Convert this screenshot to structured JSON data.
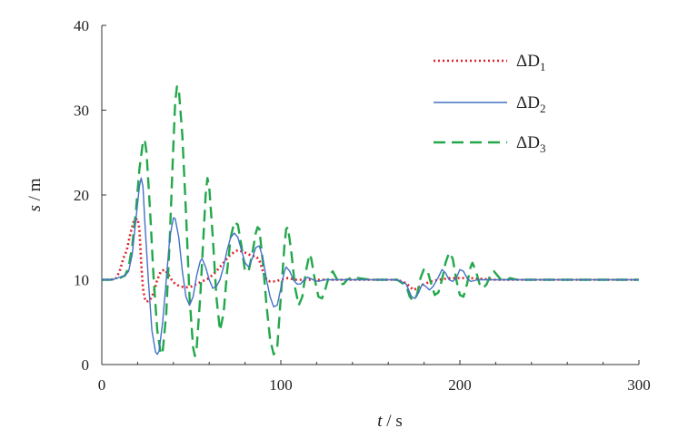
{
  "chart_data": {
    "type": "line",
    "xlabel_var": "t",
    "xlabel_unit": "s",
    "ylabel_var": "s",
    "ylabel_unit": "m",
    "xlim": [
      0,
      300
    ],
    "ylim": [
      0,
      40
    ],
    "x_ticks": [
      0,
      100,
      200,
      300
    ],
    "y_ticks": [
      0,
      10,
      20,
      30,
      40
    ],
    "grid": false,
    "legend_placement": "top-right",
    "series": [
      {
        "name_base": "ΔD",
        "name_sub": "1",
        "color": "#e0202a",
        "dash": "dotted",
        "points": [
          [
            0,
            10
          ],
          [
            5,
            10
          ],
          [
            8,
            10.2
          ],
          [
            10,
            11
          ],
          [
            12,
            12.5
          ],
          [
            14,
            13.5
          ],
          [
            16,
            15.5
          ],
          [
            18,
            17
          ],
          [
            20,
            17.2
          ],
          [
            21,
            16
          ],
          [
            22,
            12
          ],
          [
            23,
            9
          ],
          [
            24,
            7.8
          ],
          [
            25,
            7.4
          ],
          [
            27,
            7.6
          ],
          [
            29,
            8.5
          ],
          [
            31,
            10
          ],
          [
            33,
            11
          ],
          [
            35,
            11.2
          ],
          [
            37,
            10.7
          ],
          [
            39,
            10
          ],
          [
            41,
            9.5
          ],
          [
            44,
            9.2
          ],
          [
            47,
            9.1
          ],
          [
            50,
            9.2
          ],
          [
            53,
            9.5
          ],
          [
            56,
            9.8
          ],
          [
            60,
            10.2
          ],
          [
            64,
            11
          ],
          [
            68,
            12
          ],
          [
            72,
            13
          ],
          [
            76,
            13.5
          ],
          [
            80,
            13.2
          ],
          [
            84,
            12.8
          ],
          [
            86,
            12.8
          ],
          [
            88,
            12.3
          ],
          [
            90,
            11
          ],
          [
            92,
            10
          ],
          [
            94,
            9.8
          ],
          [
            97,
            9.8
          ],
          [
            100,
            10
          ],
          [
            104,
            10.2
          ],
          [
            108,
            10
          ],
          [
            112,
            10
          ],
          [
            130,
            10
          ],
          [
            165,
            10
          ],
          [
            170,
            9.6
          ],
          [
            172,
            9.2
          ],
          [
            174,
            8.8
          ],
          [
            176,
            9
          ],
          [
            180,
            9.5
          ],
          [
            184,
            9.8
          ],
          [
            188,
            10
          ],
          [
            195,
            10.2
          ],
          [
            205,
            10.2
          ],
          [
            220,
            10
          ],
          [
            300,
            10
          ]
        ]
      },
      {
        "name_base": "ΔD",
        "name_sub": "2",
        "color": "#4472c4",
        "dash": "solid",
        "points": [
          [
            0,
            10
          ],
          [
            6,
            10
          ],
          [
            10,
            10.3
          ],
          [
            13,
            10.5
          ],
          [
            15,
            11
          ],
          [
            17,
            13
          ],
          [
            19,
            17
          ],
          [
            21,
            21
          ],
          [
            22,
            22
          ],
          [
            23,
            21
          ],
          [
            24,
            17
          ],
          [
            26,
            10
          ],
          [
            28,
            4
          ],
          [
            30,
            1.5
          ],
          [
            31,
            1.2
          ],
          [
            32,
            1.6
          ],
          [
            34,
            5
          ],
          [
            36,
            10
          ],
          [
            38,
            15
          ],
          [
            40,
            17.3
          ],
          [
            41,
            17.2
          ],
          [
            43,
            15
          ],
          [
            45,
            11
          ],
          [
            47,
            8
          ],
          [
            49,
            7
          ],
          [
            51,
            8
          ],
          [
            53,
            10.5
          ],
          [
            55,
            12.2
          ],
          [
            56,
            12.5
          ],
          [
            58,
            11.5
          ],
          [
            60,
            10
          ],
          [
            62,
            9
          ],
          [
            64,
            9.2
          ],
          [
            66,
            10
          ],
          [
            68,
            11.5
          ],
          [
            70,
            13.5
          ],
          [
            72,
            15
          ],
          [
            74,
            15.5
          ],
          [
            76,
            15
          ],
          [
            78,
            13.5
          ],
          [
            80,
            12
          ],
          [
            82,
            11.5
          ],
          [
            84,
            12.5
          ],
          [
            86,
            13.8
          ],
          [
            88,
            14
          ],
          [
            90,
            12.5
          ],
          [
            92,
            10
          ],
          [
            94,
            8
          ],
          [
            96,
            6.8
          ],
          [
            98,
            7
          ],
          [
            100,
            9
          ],
          [
            102,
            11
          ],
          [
            103,
            11.5
          ],
          [
            105,
            11
          ],
          [
            107,
            10
          ],
          [
            109,
            9.5
          ],
          [
            111,
            9.5
          ],
          [
            113,
            10
          ],
          [
            115,
            10.3
          ],
          [
            118,
            10
          ],
          [
            121,
            9.8
          ],
          [
            124,
            10
          ],
          [
            130,
            10
          ],
          [
            165,
            10
          ],
          [
            170,
            9.5
          ],
          [
            173,
            8
          ],
          [
            175,
            7.8
          ],
          [
            177,
            8.5
          ],
          [
            179,
            9.5
          ],
          [
            181,
            9.2
          ],
          [
            183,
            8.8
          ],
          [
            185,
            9.2
          ],
          [
            188,
            10.3
          ],
          [
            190,
            11.2
          ],
          [
            192,
            10.8
          ],
          [
            194,
            10
          ],
          [
            196,
            9.8
          ],
          [
            198,
            10.2
          ],
          [
            200,
            11.2
          ],
          [
            202,
            11
          ],
          [
            204,
            10.2
          ],
          [
            206,
            9.8
          ],
          [
            210,
            10
          ],
          [
            300,
            10
          ]
        ]
      },
      {
        "name_base": "ΔD",
        "name_sub": "3",
        "color": "#22a84a",
        "dash": "dashed",
        "points": [
          [
            0,
            10
          ],
          [
            5,
            10
          ],
          [
            10,
            10.2
          ],
          [
            13,
            10.5
          ],
          [
            15,
            11.5
          ],
          [
            17,
            14
          ],
          [
            19,
            18
          ],
          [
            21,
            23
          ],
          [
            23,
            26.3
          ],
          [
            24,
            26.5
          ],
          [
            25,
            25
          ],
          [
            27,
            18
          ],
          [
            29,
            10
          ],
          [
            31,
            4
          ],
          [
            33,
            1.2
          ],
          [
            34,
            1.5
          ],
          [
            36,
            6
          ],
          [
            38,
            15
          ],
          [
            40,
            26
          ],
          [
            41,
            31
          ],
          [
            42,
            32.8
          ],
          [
            43,
            32.5
          ],
          [
            45,
            27
          ],
          [
            47,
            18
          ],
          [
            49,
            8
          ],
          [
            51,
            2
          ],
          [
            52,
            1
          ],
          [
            53,
            2
          ],
          [
            55,
            8
          ],
          [
            57,
            16
          ],
          [
            58,
            20
          ],
          [
            59,
            22
          ],
          [
            60,
            21
          ],
          [
            62,
            15
          ],
          [
            64,
            8
          ],
          [
            66,
            4
          ],
          [
            68,
            6
          ],
          [
            70,
            11
          ],
          [
            72,
            15
          ],
          [
            74,
            16.8
          ],
          [
            76,
            16.5
          ],
          [
            78,
            14
          ],
          [
            80,
            11
          ],
          [
            82,
            11
          ],
          [
            84,
            13
          ],
          [
            86,
            15.5
          ],
          [
            87,
            16.2
          ],
          [
            88,
            16
          ],
          [
            90,
            12
          ],
          [
            92,
            7
          ],
          [
            94,
            3
          ],
          [
            96,
            1.2
          ],
          [
            98,
            2
          ],
          [
            100,
            8
          ],
          [
            102,
            14
          ],
          [
            103,
            16
          ],
          [
            104,
            16.2
          ],
          [
            106,
            13
          ],
          [
            108,
            9
          ],
          [
            110,
            7
          ],
          [
            112,
            8
          ],
          [
            114,
            11
          ],
          [
            116,
            13
          ],
          [
            117,
            12.5
          ],
          [
            119,
            10
          ],
          [
            121,
            8
          ],
          [
            123,
            7.8
          ],
          [
            125,
            9
          ],
          [
            127,
            10.5
          ],
          [
            129,
            11
          ],
          [
            131,
            10.2
          ],
          [
            133,
            9.5
          ],
          [
            135,
            9.5
          ],
          [
            137,
            10
          ],
          [
            140,
            10.3
          ],
          [
            150,
            10
          ],
          [
            165,
            10
          ],
          [
            170,
            9.3
          ],
          [
            172,
            8
          ],
          [
            174,
            7.5
          ],
          [
            176,
            8.2
          ],
          [
            178,
            10.2
          ],
          [
            180,
            11.3
          ],
          [
            182,
            11
          ],
          [
            184,
            9.5
          ],
          [
            186,
            8.2
          ],
          [
            188,
            8.5
          ],
          [
            190,
            10
          ],
          [
            192,
            12
          ],
          [
            194,
            13.2
          ],
          [
            196,
            12.5
          ],
          [
            198,
            10
          ],
          [
            200,
            8.2
          ],
          [
            202,
            8
          ],
          [
            204,
            9.5
          ],
          [
            206,
            11.5
          ],
          [
            207,
            12
          ],
          [
            209,
            11
          ],
          [
            211,
            9.5
          ],
          [
            213,
            9
          ],
          [
            215,
            9.5
          ],
          [
            217,
            10.5
          ],
          [
            219,
            11
          ],
          [
            221,
            10.5
          ],
          [
            223,
            10
          ],
          [
            225,
            9.8
          ],
          [
            228,
            10.2
          ],
          [
            232,
            10
          ],
          [
            300,
            10
          ]
        ]
      }
    ]
  }
}
